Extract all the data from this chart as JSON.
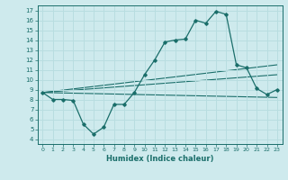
{
  "title": "",
  "xlabel": "Humidex (Indice chaleur)",
  "bg_color": "#ceeaed",
  "grid_color": "#b8dde0",
  "line_color": "#1a6e6a",
  "xlim": [
    -0.5,
    23.5
  ],
  "ylim": [
    3.5,
    17.5
  ],
  "xticks": [
    0,
    1,
    2,
    3,
    4,
    5,
    6,
    7,
    8,
    9,
    10,
    11,
    12,
    13,
    14,
    15,
    16,
    17,
    18,
    19,
    20,
    21,
    22,
    23
  ],
  "yticks": [
    4,
    5,
    6,
    7,
    8,
    9,
    10,
    11,
    12,
    13,
    14,
    15,
    16,
    17
  ],
  "main_x": [
    0,
    1,
    2,
    3,
    4,
    5,
    6,
    7,
    8,
    9,
    10,
    11,
    12,
    13,
    14,
    15,
    16,
    17,
    18,
    19,
    20,
    21,
    22,
    23
  ],
  "main_y": [
    8.7,
    8.0,
    8.0,
    7.9,
    5.5,
    4.5,
    5.2,
    7.5,
    7.5,
    8.7,
    10.5,
    12.0,
    13.8,
    14.0,
    14.1,
    16.0,
    15.7,
    16.9,
    16.6,
    11.5,
    11.2,
    9.1,
    8.5,
    9.0
  ],
  "line2_x": [
    0,
    23
  ],
  "line2_y": [
    8.7,
    11.5
  ],
  "line3_x": [
    0,
    23
  ],
  "line3_y": [
    8.7,
    10.5
  ],
  "line4_x": [
    0,
    23
  ],
  "line4_y": [
    8.7,
    8.2
  ]
}
